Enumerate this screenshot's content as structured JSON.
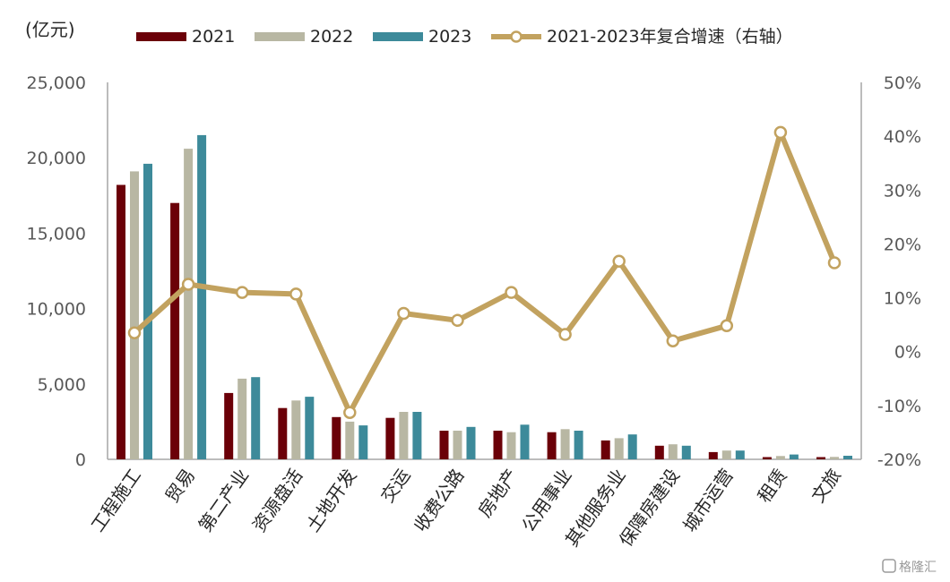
{
  "unit_label": "(亿元)",
  "watermark": "格隆汇",
  "colors": {
    "s2021": "#6b0008",
    "s2022": "#b8b7a3",
    "s2023": "#3d8a9a",
    "line": "#c2a25f",
    "axis": "#a6a6a6"
  },
  "chart_data": {
    "type": "bar",
    "categories": [
      "工程施工",
      "贸易",
      "第二产业",
      "资源盘活",
      "土地开发",
      "交运",
      "收费公路",
      "房地产",
      "公用事业",
      "其他服务业",
      "保障房建设",
      "城市运营",
      "租赁",
      "文旅"
    ],
    "series": [
      {
        "name": "2021",
        "values": [
          18200,
          17000,
          4400,
          3400,
          2800,
          2750,
          1900,
          1900,
          1800,
          1250,
          900,
          480,
          150,
          150
        ]
      },
      {
        "name": "2022",
        "values": [
          19100,
          20600,
          5350,
          3900,
          2500,
          3150,
          1900,
          1800,
          2000,
          1400,
          1000,
          580,
          220,
          160
        ]
      },
      {
        "name": "2023",
        "values": [
          19600,
          21500,
          5450,
          4150,
          2250,
          3150,
          2150,
          2300,
          1900,
          1650,
          900,
          580,
          320,
          240
        ]
      }
    ],
    "line_series": {
      "name": "2021-2023年复合增速（右轴）",
      "values": [
        3.5,
        12.5,
        11.0,
        10.7,
        -11.3,
        7.1,
        5.8,
        11.0,
        3.2,
        16.8,
        2.0,
        4.8,
        40.7,
        16.5
      ]
    },
    "ylim": [
      0,
      25000
    ],
    "yticks": [
      "0",
      "5,000",
      "10,000",
      "15,000",
      "20,000",
      "25,000"
    ],
    "y2lim": [
      -20,
      50
    ],
    "y2ticks": [
      "-20%",
      "-10%",
      "0%",
      "10%",
      "20%",
      "30%",
      "40%",
      "50%"
    ],
    "legend": [
      "2021",
      "2022",
      "2023",
      "2021-2023年复合增速（右轴）"
    ],
    "legend_position": "top"
  }
}
